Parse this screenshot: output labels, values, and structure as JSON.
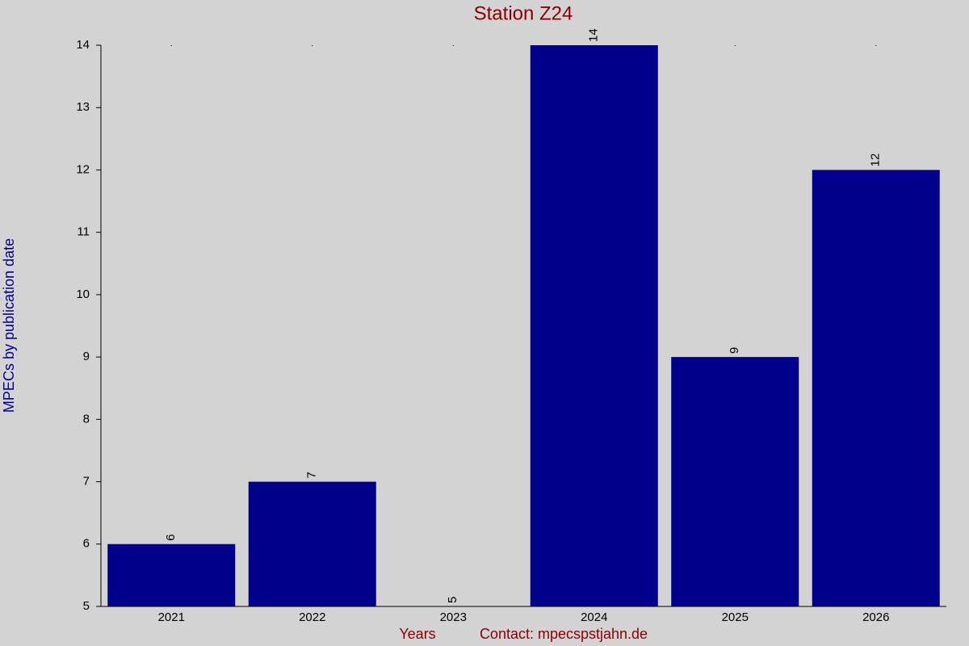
{
  "chart_data": {
    "type": "bar",
    "title": "Station Z24",
    "y_label": "MPECs by publication date",
    "x_label": "Years",
    "contact": "Contact: mpecspstjahn.de",
    "categories": [
      "2021",
      "2022",
      "2023",
      "2024",
      "2025",
      "2026"
    ],
    "values": [
      6,
      7,
      5,
      14,
      9,
      12
    ],
    "color": "#00008b",
    "ylim": [
      5,
      14
    ],
    "yticks": [
      5,
      6,
      7,
      8,
      9,
      10,
      11,
      12,
      13,
      14
    ],
    "grid": false
  }
}
